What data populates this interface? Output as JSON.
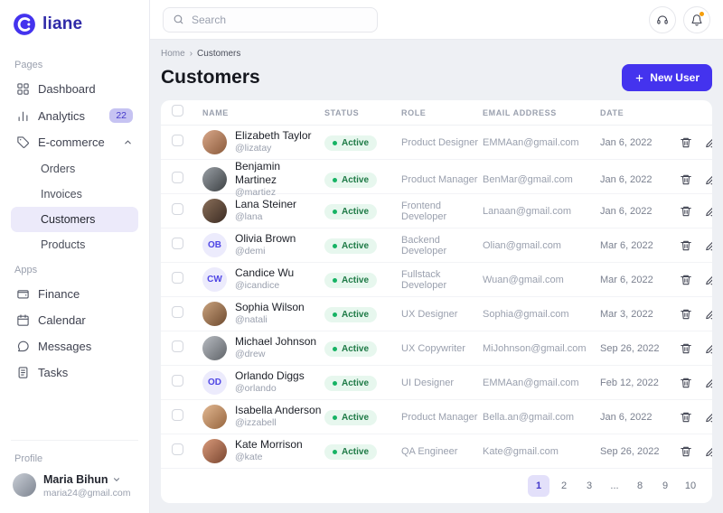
{
  "brand": "liane",
  "colors": {
    "accent": "#4433ee",
    "active_item_bg": "#eceafa",
    "status_green": "#16b364",
    "status_green_bg": "#e7f7ee",
    "badge_bg": "#c6c3f2",
    "badge_text": "#4338ca"
  },
  "topbar": {
    "search_placeholder": "Search",
    "icons": [
      "support-icon",
      "bell-icon"
    ]
  },
  "sidebar": {
    "pages_title": "Pages",
    "apps_title": "Apps",
    "profile_title": "Profile",
    "pages": [
      {
        "label": "Dashboard",
        "icon": "grid-icon"
      },
      {
        "label": "Analytics",
        "icon": "chart-icon",
        "badge": "22"
      },
      {
        "label": "E-commerce",
        "icon": "tag-icon",
        "expanded": true
      }
    ],
    "ecommerce_children": [
      "Orders",
      "Invoices",
      "Customers",
      "Products"
    ],
    "active_child": "Customers",
    "apps": [
      "Finance",
      "Calendar",
      "Messages",
      "Tasks"
    ],
    "profile": {
      "name": "Maria Bihun",
      "email": "maria24@gmail.com"
    }
  },
  "breadcrumb": {
    "home": "Home",
    "separator": "›",
    "current": "Customers"
  },
  "page": {
    "title": "Customers",
    "new_user_label": "New User"
  },
  "table": {
    "headers": {
      "name": "NAME",
      "status": "STATUS",
      "role": "ROLE",
      "email": "EMAIL ADDRESS",
      "date": "DATE"
    },
    "rows": [
      {
        "name": "Elizabeth Taylor",
        "handle": "@lizatay",
        "status": "Active",
        "role": "Product Designer",
        "email": "EMMAan@gmail.com",
        "date": "Jan 6, 2022",
        "avatar": {
          "type": "photo",
          "colors": [
            "#d9a88a",
            "#8a5a3b"
          ]
        }
      },
      {
        "name": "Benjamin Martinez",
        "handle": "@martiez",
        "status": "Active",
        "role": "Product Manager",
        "email": "BenMar@gmail.com",
        "date": "Jan 6, 2022",
        "avatar": {
          "type": "photo",
          "colors": [
            "#9aa0a6",
            "#3c4043"
          ]
        }
      },
      {
        "name": "Lana Steiner",
        "handle": "@lana",
        "status": "Active",
        "role": "Frontend Developer",
        "email": "Lanaan@gmail.com",
        "date": "Jan 6, 2022",
        "avatar": {
          "type": "photo",
          "colors": [
            "#8a6f5a",
            "#3b2b22"
          ]
        }
      },
      {
        "name": "Olivia Brown",
        "handle": "@demi",
        "status": "Active",
        "role": "Backend Developer",
        "email": "Olian@gmail.com",
        "date": "Mar 6, 2022",
        "avatar": {
          "type": "initials",
          "initials": "OB"
        }
      },
      {
        "name": "Candice Wu",
        "handle": "@icandice",
        "status": "Active",
        "role": "Fullstack Developer",
        "email": "Wuan@gmail.com",
        "date": "Mar 6, 2022",
        "avatar": {
          "type": "initials",
          "initials": "CW"
        }
      },
      {
        "name": "Sophia Wilson",
        "handle": "@natali",
        "status": "Active",
        "role": "UX Designer",
        "email": "Sophia@gmail.com",
        "date": "Mar 3, 2022",
        "avatar": {
          "type": "photo",
          "colors": [
            "#caa37e",
            "#6e4a2f"
          ]
        }
      },
      {
        "name": "Michael Johnson",
        "handle": "@drew",
        "status": "Active",
        "role": "UX Copywriter",
        "email": "MiJohnson@gmail.com",
        "date": "Sep 26, 2022",
        "avatar": {
          "type": "photo",
          "colors": [
            "#b8bcc2",
            "#5f6368"
          ]
        }
      },
      {
        "name": "Orlando Diggs",
        "handle": "@orlando",
        "status": "Active",
        "role": "UI Designer",
        "email": "EMMAan@gmail.com",
        "date": "Feb 12, 2022",
        "avatar": {
          "type": "initials",
          "initials": "OD"
        }
      },
      {
        "name": "Isabella Anderson",
        "handle": "@izzabell",
        "status": "Active",
        "role": "Product Manager",
        "email": "Bella.an@gmail.com",
        "date": "Jan 6, 2022",
        "avatar": {
          "type": "photo",
          "colors": [
            "#e2b892",
            "#96653e"
          ]
        }
      },
      {
        "name": "Kate Morrison",
        "handle": "@kate",
        "status": "Active",
        "role": "QA Engineer",
        "email": "Kate@gmail.com",
        "date": "Sep 26, 2022",
        "avatar": {
          "type": "photo",
          "colors": [
            "#d99a7a",
            "#7a4630"
          ]
        }
      }
    ]
  },
  "pagination": {
    "pages": [
      "1",
      "2",
      "3",
      "...",
      "8",
      "9",
      "10"
    ],
    "active": "1",
    "ellipsis": "..."
  }
}
